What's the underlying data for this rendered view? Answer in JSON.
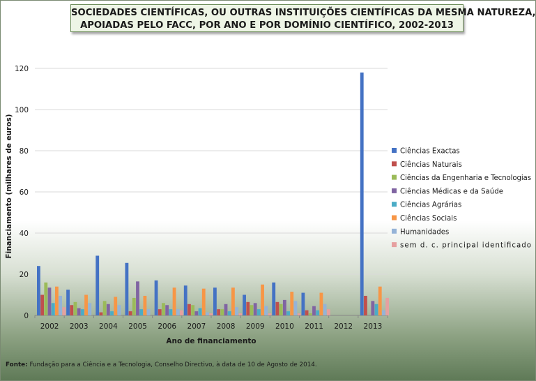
{
  "title_line1": "SOCIEDADES CIENTÍFICAS, OU OUTRAS INSTITUIÇÕES CIENTÍFICAS DA MESMA NATUREZA,",
  "title_line2": "APOIADAS PELO FACC, POR ANO E POR DOMÍNIO CIENTÍFICO, 2002-2013",
  "source_label": "Fonte:",
  "source_text": " Fundação para a Ciência e a Tecnologia, Conselho Directivo, à data de 10 de Agosto de 2014.",
  "chart_data": {
    "type": "bar",
    "xlabel": "Ano de financiamento",
    "ylabel": "Financiamento (milhares de euros)",
    "ylim": [
      0,
      120
    ],
    "yticks": [
      0,
      20,
      40,
      60,
      80,
      100,
      120
    ],
    "grid": "horizontal",
    "legend_position": "right",
    "categories": [
      "2002",
      "2003",
      "2004",
      "2005",
      "2006",
      "2007",
      "2008",
      "2009",
      "2010",
      "2011",
      "2012",
      "2013"
    ],
    "series": [
      {
        "name": "Ciências Exactas",
        "color": "#4472C4",
        "values": [
          24,
          12.5,
          29,
          25.5,
          17,
          14.5,
          13.5,
          10,
          16,
          11,
          0,
          118
        ]
      },
      {
        "name": "Ciências Naturais",
        "color": "#C0504D",
        "values": [
          10,
          5,
          1.5,
          2,
          3,
          5.5,
          3,
          6.5,
          6.5,
          2.5,
          0,
          9.5
        ]
      },
      {
        "name": "Ciências da Engenharia e Tecnologias",
        "color": "#9BBB59",
        "values": [
          16,
          6.5,
          7,
          8.5,
          6,
          5,
          3,
          5,
          5.5,
          1,
          0,
          0
        ]
      },
      {
        "name": "Ciências Médicas e da Saúde",
        "color": "#8064A2",
        "values": [
          13.5,
          3.5,
          5.5,
          16.5,
          5,
          2,
          5.5,
          6,
          7.5,
          4.5,
          0,
          7
        ]
      },
      {
        "name": "Ciências Agrárias",
        "color": "#4BACC6",
        "values": [
          6,
          3,
          2,
          3,
          3,
          3.5,
          2,
          3,
          2,
          2.5,
          0,
          5.5
        ]
      },
      {
        "name": "Ciências Sociais",
        "color": "#F79646",
        "values": [
          14,
          10,
          9,
          9.5,
          13.5,
          13,
          13.5,
          15,
          11.5,
          11,
          0,
          14
        ]
      },
      {
        "name": "Humanidades",
        "color": "#95B3D7",
        "values": [
          9.5,
          6,
          5,
          3,
          3,
          1.5,
          4,
          4.5,
          7,
          5.5,
          0,
          2.5
        ]
      },
      {
        "name": "sem d. c. principal identificado",
        "color": "#E6A0A0",
        "values": [
          4,
          0,
          0,
          0,
          2.5,
          1,
          1,
          1,
          1,
          3,
          0,
          8.5
        ]
      }
    ]
  }
}
